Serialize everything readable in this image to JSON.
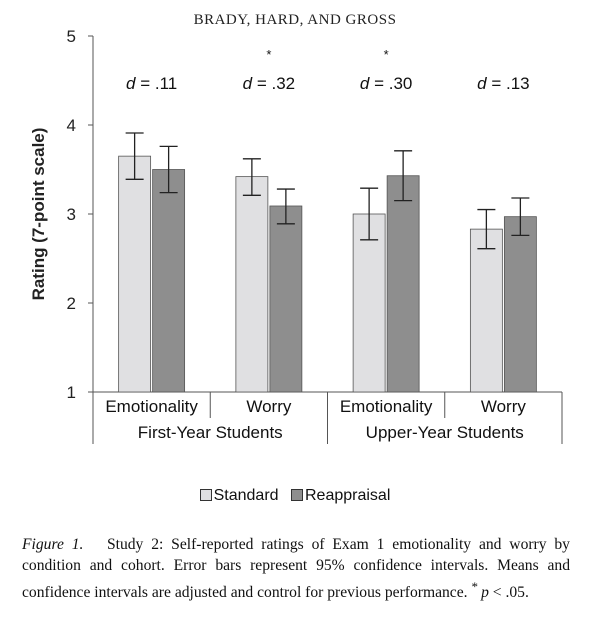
{
  "running_head": "BRADY, HARD, AND GROSS",
  "colors": {
    "standard": "#e0e0e2",
    "reappraisal": "#8e8e8e",
    "axis": "#555555",
    "error": "#222222"
  },
  "chart_data": {
    "type": "bar",
    "title": "",
    "ylabel": "Rating (7-point scale)",
    "xlabel": "",
    "ylim": [
      1,
      5
    ],
    "yticks": [
      1,
      2,
      3,
      4,
      5
    ],
    "categories": [
      "Emotionality",
      "Worry",
      "Emotionality",
      "Worry"
    ],
    "groups": [
      {
        "label": "First-Year Students",
        "span": [
          0,
          1
        ]
      },
      {
        "label": "Upper-Year Students",
        "span": [
          2,
          3
        ]
      }
    ],
    "series": [
      {
        "name": "Standard",
        "values": [
          3.65,
          3.42,
          3.0,
          2.83
        ],
        "ci_low": [
          3.39,
          3.21,
          2.71,
          2.61
        ],
        "ci_high": [
          3.91,
          3.62,
          3.29,
          3.05
        ]
      },
      {
        "name": "Reappraisal",
        "values": [
          3.5,
          3.09,
          3.43,
          2.97
        ],
        "ci_low": [
          3.24,
          2.89,
          3.15,
          2.76
        ],
        "ci_high": [
          3.76,
          3.28,
          3.71,
          3.18
        ]
      }
    ],
    "annotations": [
      {
        "category": 0,
        "text": "d = .11",
        "star": ""
      },
      {
        "category": 1,
        "text": "d = .32",
        "star": "*"
      },
      {
        "category": 2,
        "text": "d = .30",
        "star": "*"
      },
      {
        "category": 3,
        "text": "d = .13",
        "star": ""
      }
    ],
    "legend": {
      "placement": "bottom",
      "entries": [
        "Standard",
        "Reappraisal"
      ]
    },
    "grid": false
  },
  "caption": {
    "label": "Figure 1.",
    "text": "Study 2: Self-reported ratings of Exam 1 emotionality and worry by condition and cohort. Error bars represent 95% confidence intervals. Means and confidence intervals are adjusted and control for previous performance.",
    "footnote_star": "*",
    "footnote_p": "p",
    "footnote_rest": " < .05."
  }
}
